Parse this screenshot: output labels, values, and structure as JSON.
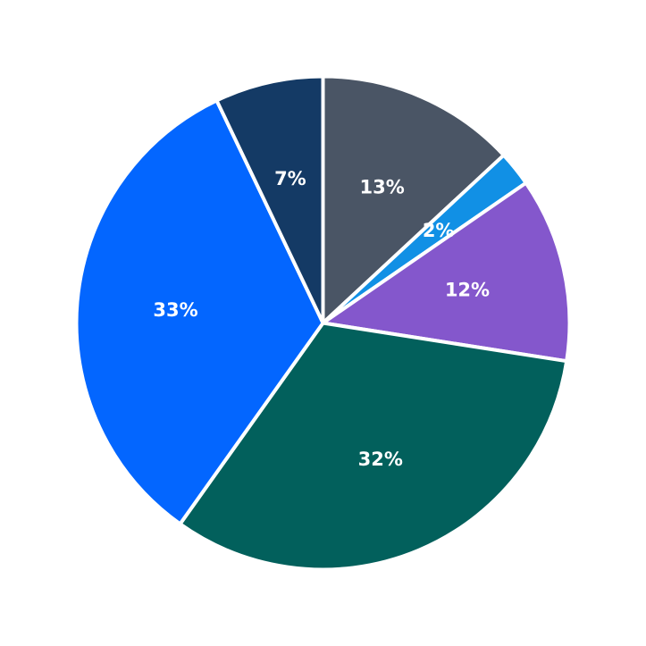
{
  "chart_data": {
    "type": "pie",
    "start_angle_deg": 90,
    "direction": "clockwise",
    "slices": [
      {
        "label": "13%",
        "value": 13.1,
        "color": "#4a5565"
      },
      {
        "label": "2%",
        "value": 2.3,
        "color": "#1190e5"
      },
      {
        "label": "12%",
        "value": 12.1,
        "color": "#8457cc"
      },
      {
        "label": "32%",
        "value": 32.4,
        "color": "#02605c"
      },
      {
        "label": "33%",
        "value": 33.1,
        "color": "#0366ff"
      },
      {
        "label": "7%",
        "value": 7.1,
        "color": "#143a65"
      }
    ],
    "legend": "none",
    "title": ""
  }
}
